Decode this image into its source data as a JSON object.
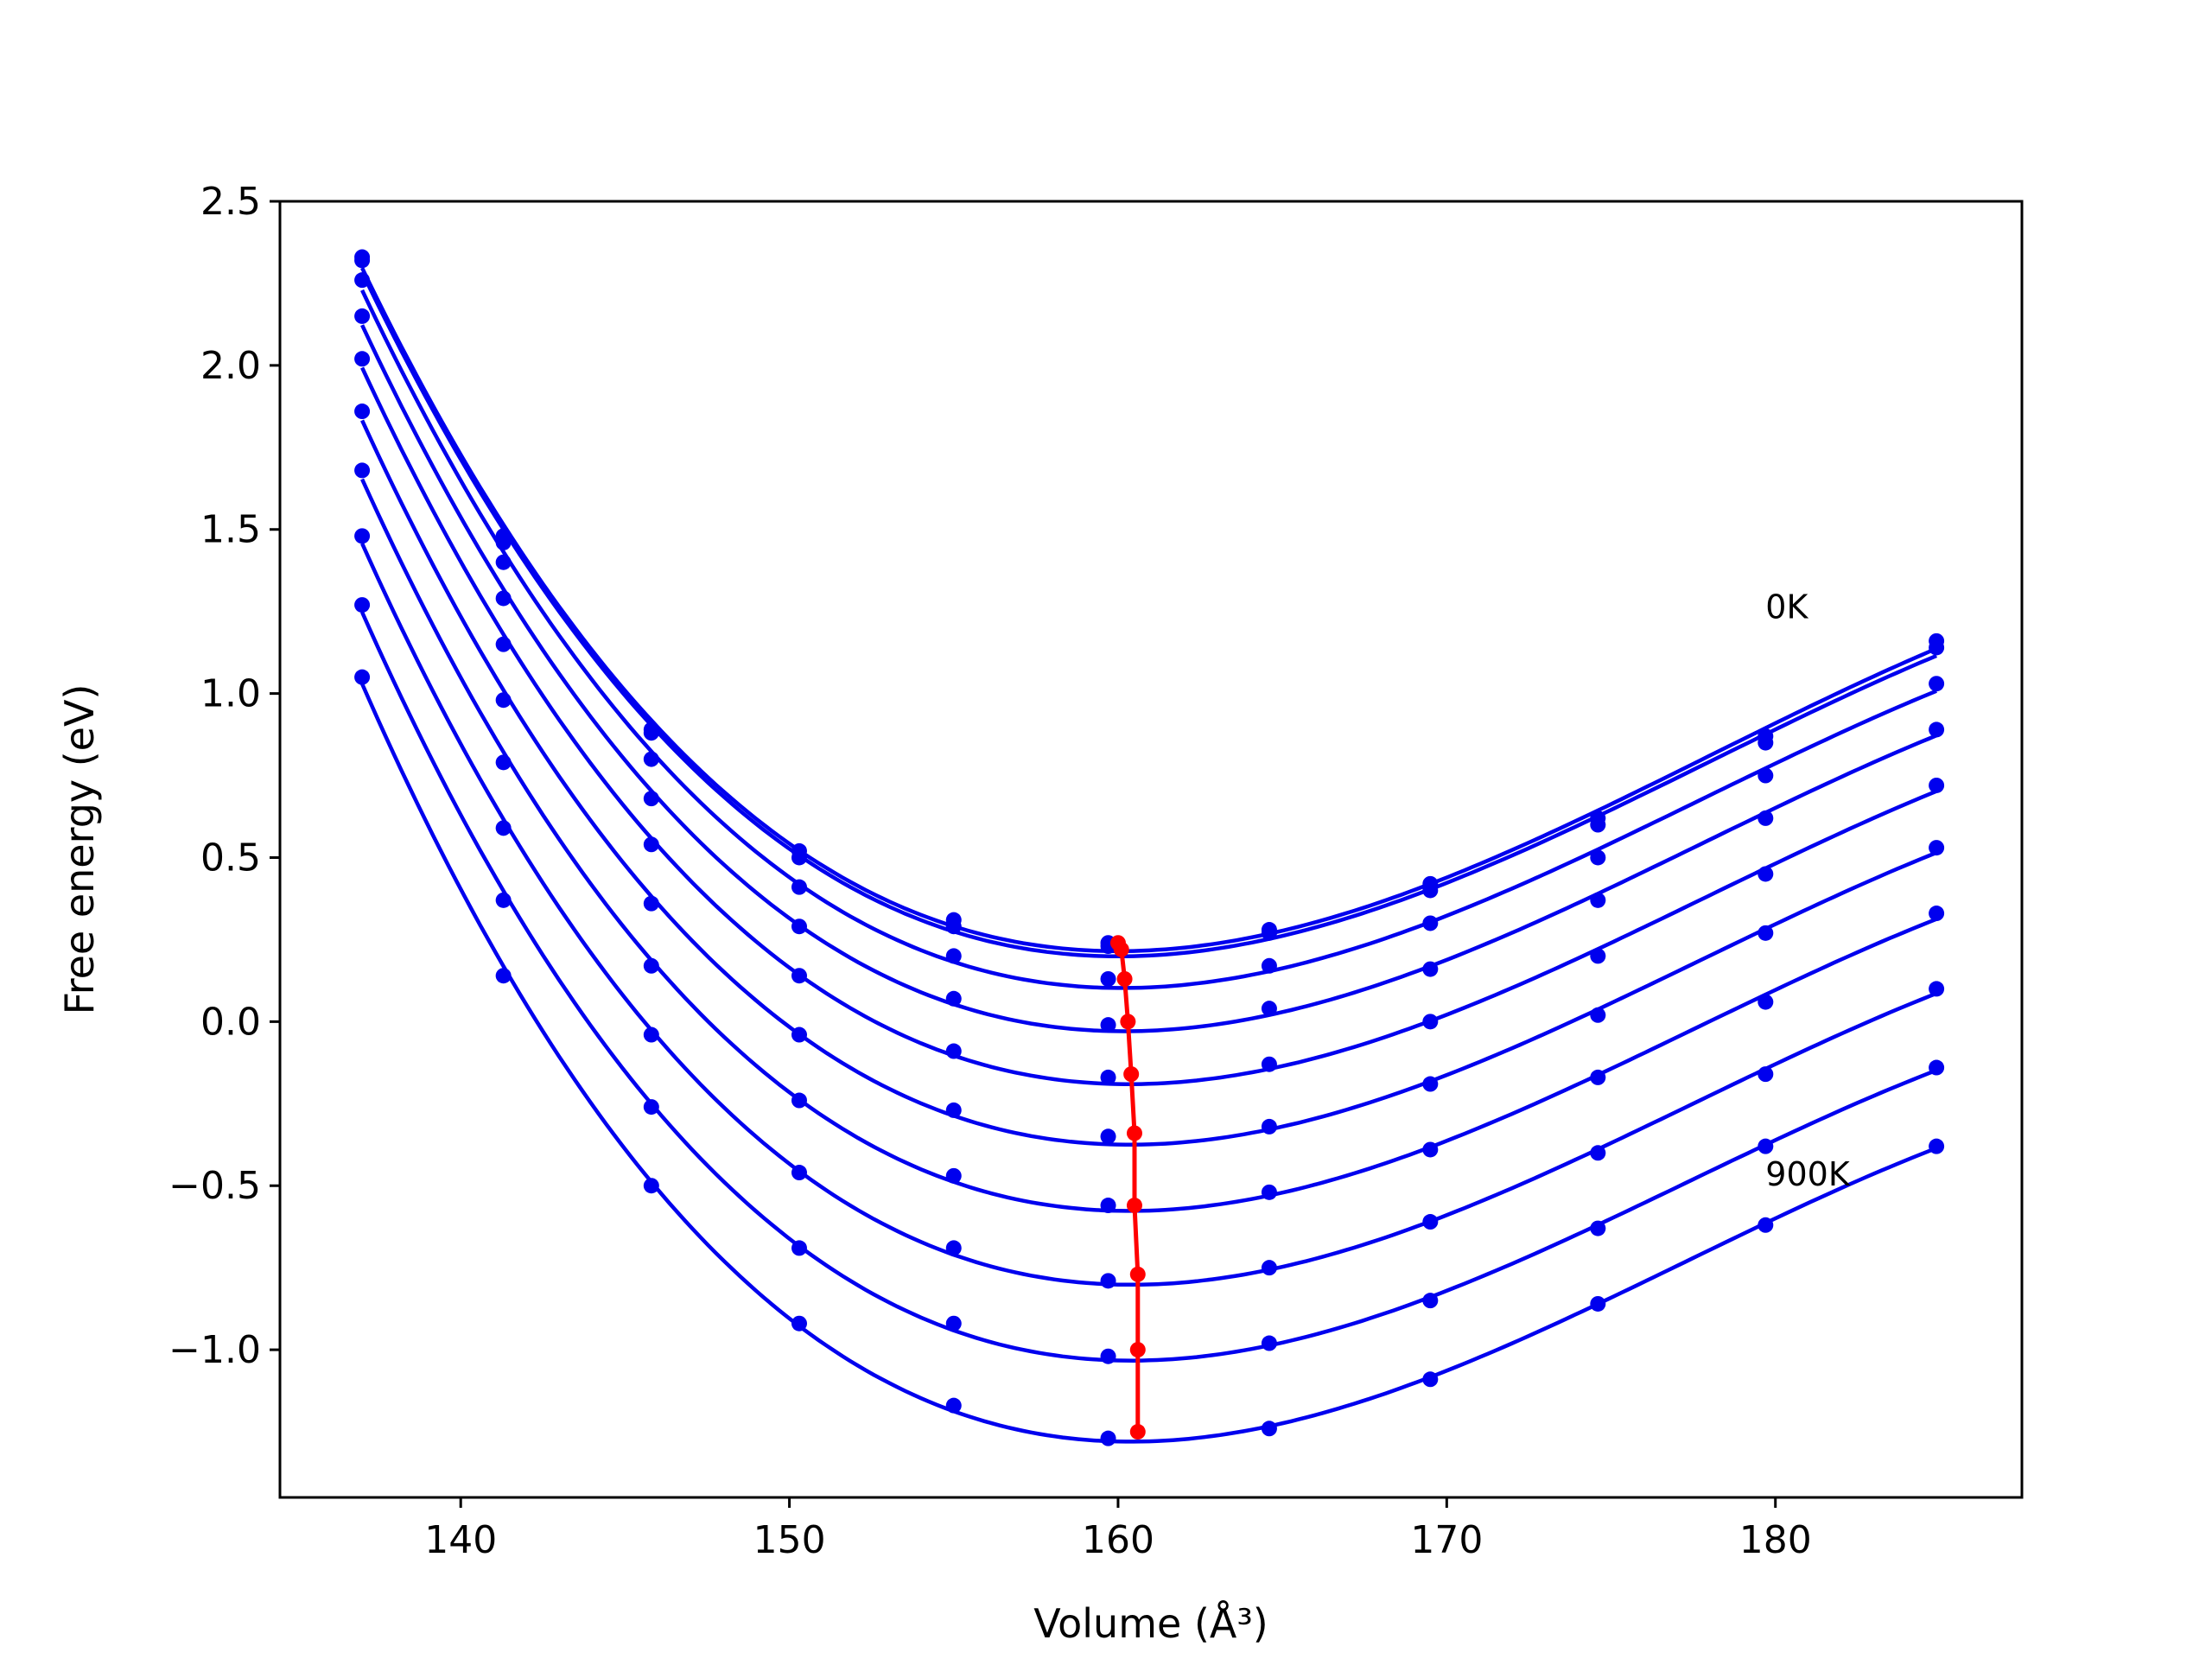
{
  "chart_data": {
    "type": "line",
    "xlabel": "Volume (Å³)",
    "ylabel": "Free energy (eV)",
    "xlim": [
      134.5,
      187.5
    ],
    "ylim": [
      -1.45,
      2.5
    ],
    "xticks": [
      140,
      150,
      160,
      170,
      180
    ],
    "yticks": [
      -1.0,
      -0.5,
      0.0,
      0.5,
      1.0,
      1.5,
      2.0,
      2.5
    ],
    "xtick_labels": [
      "140",
      "150",
      "160",
      "170",
      "180"
    ],
    "ytick_labels": [
      "−1.0",
      "−0.5",
      "0.0",
      "0.5",
      "1.0",
      "1.5",
      "2.0",
      "2.5"
    ],
    "grid": false,
    "colors": {
      "fit": "#0000ee",
      "points": "#0000ee",
      "minima": "#ff0000"
    },
    "annotations": [
      {
        "text": "0K",
        "x": 179.7,
        "y": 1.23
      },
      {
        "text": "900K",
        "x": 179.7,
        "y": -0.5
      }
    ],
    "volumes": [
      137.0,
      141.3,
      145.8,
      150.3,
      155.0,
      159.7,
      164.6,
      169.5,
      174.6,
      179.7,
      184.9
    ],
    "series": [
      {
        "values": [
          2.33,
          1.48,
          0.89,
          0.52,
          0.31,
          0.24,
          0.28,
          0.42,
          0.62,
          0.87,
          1.16
        ],
        "minimum": [
          160.0,
          0.24
        ]
      },
      {
        "values": [
          2.32,
          1.46,
          0.88,
          0.5,
          0.29,
          0.23,
          0.27,
          0.4,
          0.6,
          0.85,
          1.14
        ],
        "minimum": [
          160.1,
          0.22
        ]
      },
      {
        "values": [
          2.26,
          1.4,
          0.8,
          0.41,
          0.2,
          0.13,
          0.17,
          0.3,
          0.5,
          0.75,
          1.03
        ],
        "minimum": [
          160.2,
          0.13
        ]
      },
      {
        "values": [
          2.15,
          1.29,
          0.68,
          0.29,
          0.07,
          -0.01,
          0.04,
          0.16,
          0.37,
          0.62,
          0.89
        ],
        "minimum": [
          160.3,
          0.0
        ]
      },
      {
        "values": [
          2.02,
          1.15,
          0.54,
          0.14,
          -0.09,
          -0.17,
          -0.13,
          0.0,
          0.2,
          0.45,
          0.72
        ],
        "minimum": [
          160.4,
          -0.16
        ]
      },
      {
        "values": [
          1.86,
          0.98,
          0.36,
          -0.04,
          -0.27,
          -0.35,
          -0.32,
          -0.19,
          0.02,
          0.27,
          0.53
        ],
        "minimum": [
          160.5,
          -0.34
        ]
      },
      {
        "values": [
          1.68,
          0.79,
          0.17,
          -0.24,
          -0.47,
          -0.56,
          -0.52,
          -0.39,
          -0.17,
          0.06,
          0.33
        ],
        "minimum": [
          160.5,
          -0.56
        ]
      },
      {
        "values": [
          1.48,
          0.59,
          -0.04,
          -0.46,
          -0.69,
          -0.79,
          -0.75,
          -0.61,
          -0.4,
          -0.16,
          0.1
        ],
        "minimum": [
          160.6,
          -0.77
        ]
      },
      {
        "values": [
          1.27,
          0.37,
          -0.26,
          -0.69,
          -0.92,
          -1.02,
          -0.98,
          -0.85,
          -0.63,
          -0.38,
          -0.14
        ],
        "minimum": [
          160.6,
          -1.0
        ]
      },
      {
        "values": [
          1.05,
          0.14,
          -0.5,
          -0.92,
          -1.17,
          -1.27,
          -1.24,
          -1.09,
          -0.86,
          -0.62,
          -0.38
        ],
        "minimum": [
          160.6,
          -1.25
        ]
      }
    ]
  }
}
